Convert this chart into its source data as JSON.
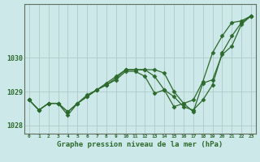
{
  "title": "Graphe pression niveau de la mer (hPa)",
  "bg_color": "#cce8e8",
  "grid_color": "#b0c8c8",
  "line_color": "#2d6a2d",
  "x_labels": [
    "0",
    "1",
    "2",
    "3",
    "4",
    "5",
    "6",
    "7",
    "8",
    "9",
    "10",
    "11",
    "12",
    "13",
    "14",
    "15",
    "16",
    "17",
    "18",
    "19",
    "20",
    "21",
    "22",
    "23"
  ],
  "series": [
    [
      1028.75,
      1028.45,
      1028.65,
      1028.65,
      1028.4,
      1028.65,
      1028.85,
      1029.05,
      1029.25,
      1029.45,
      1029.65,
      1029.65,
      1029.65,
      1029.65,
      1029.55,
      1029.0,
      1028.65,
      1028.75,
      1029.3,
      1030.15,
      1030.65,
      1031.05,
      1031.1,
      1031.25
    ],
    [
      1028.75,
      1028.45,
      1028.65,
      1028.65,
      1028.4,
      1028.65,
      1028.9,
      1029.05,
      1029.2,
      1029.4,
      1029.65,
      1029.65,
      1029.65,
      1029.45,
      1029.05,
      1028.85,
      1028.55,
      1028.45,
      1028.75,
      1029.2,
      1030.15,
      1030.65,
      1031.05,
      1031.25
    ],
    [
      1028.75,
      1028.45,
      1028.65,
      1028.65,
      1028.3,
      1028.65,
      1028.85,
      1029.05,
      1029.2,
      1029.35,
      1029.6,
      1029.6,
      1029.45,
      1028.95,
      1029.05,
      1028.55,
      1028.65,
      1028.4,
      1029.25,
      1029.35,
      1030.1,
      1030.35,
      1031.0,
      1031.25
    ]
  ],
  "ylim": [
    1027.75,
    1031.6
  ],
  "yticks": [
    1028,
    1029,
    1030
  ],
  "marker": "D",
  "markersize": 2.5,
  "linewidth": 0.9
}
